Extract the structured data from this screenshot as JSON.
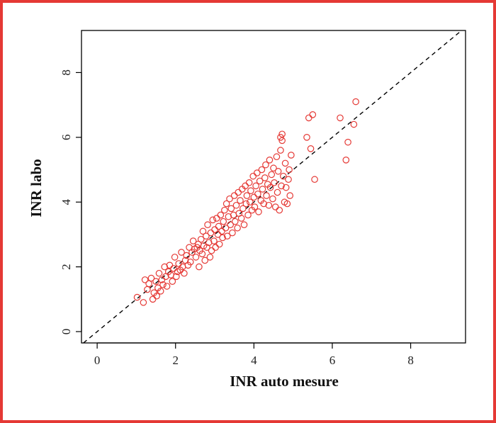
{
  "colors": {
    "border": "#e53935",
    "points": "#e53935",
    "axis": "#000000",
    "reference_line": "#000000"
  },
  "chart_data": {
    "type": "scatter",
    "title": "",
    "xlabel": "INR auto mesure",
    "ylabel": "INR labo",
    "xlim": [
      -0.4,
      9.4
    ],
    "ylim": [
      -0.35,
      9.3
    ],
    "x_ticks": [
      "0",
      "2",
      "4",
      "6",
      "8"
    ],
    "y_ticks": [
      "0",
      "2",
      "4",
      "6",
      "8"
    ],
    "grid": false,
    "reference_line": {
      "style": "dashed",
      "slope": 1,
      "intercept": 0
    },
    "marker": "open-circle",
    "points": [
      [
        1.02,
        1.06
      ],
      [
        1.18,
        0.9
      ],
      [
        1.22,
        1.6
      ],
      [
        1.28,
        1.3
      ],
      [
        1.32,
        1.48
      ],
      [
        1.38,
        1.65
      ],
      [
        1.42,
        1.0
      ],
      [
        1.45,
        1.2
      ],
      [
        1.5,
        1.55
      ],
      [
        1.52,
        1.1
      ],
      [
        1.55,
        1.35
      ],
      [
        1.58,
        1.8
      ],
      [
        1.62,
        1.25
      ],
      [
        1.65,
        1.6
      ],
      [
        1.68,
        1.45
      ],
      [
        1.72,
        2.0
      ],
      [
        1.75,
        1.7
      ],
      [
        1.78,
        1.4
      ],
      [
        1.82,
        1.85
      ],
      [
        1.85,
        2.05
      ],
      [
        1.88,
        1.75
      ],
      [
        1.92,
        1.55
      ],
      [
        1.95,
        1.95
      ],
      [
        1.98,
        2.3
      ],
      [
        2.02,
        1.7
      ],
      [
        2.05,
        1.85
      ],
      [
        2.08,
        2.1
      ],
      [
        2.12,
        1.9
      ],
      [
        2.15,
        2.45
      ],
      [
        2.18,
        2.0
      ],
      [
        2.22,
        1.8
      ],
      [
        2.25,
        2.2
      ],
      [
        2.28,
        2.35
      ],
      [
        2.32,
        2.05
      ],
      [
        2.35,
        2.6
      ],
      [
        2.38,
        2.15
      ],
      [
        2.42,
        2.45
      ],
      [
        2.45,
        2.8
      ],
      [
        2.48,
        2.55
      ],
      [
        2.52,
        2.3
      ],
      [
        2.55,
        2.6
      ],
      [
        2.58,
        2.7
      ],
      [
        2.6,
        2.0
      ],
      [
        2.62,
        2.5
      ],
      [
        2.65,
        2.85
      ],
      [
        2.68,
        2.4
      ],
      [
        2.7,
        3.1
      ],
      [
        2.72,
        2.65
      ],
      [
        2.75,
        2.2
      ],
      [
        2.78,
        2.95
      ],
      [
        2.8,
        2.6
      ],
      [
        2.82,
        3.3
      ],
      [
        2.85,
        2.75
      ],
      [
        2.88,
        2.3
      ],
      [
        2.9,
        3.05
      ],
      [
        2.92,
        2.5
      ],
      [
        2.95,
        3.45
      ],
      [
        2.98,
        2.8
      ],
      [
        3.0,
        3.15
      ],
      [
        3.02,
        2.6
      ],
      [
        3.05,
        3.5
      ],
      [
        3.08,
        3.0
      ],
      [
        3.1,
        3.25
      ],
      [
        3.12,
        2.7
      ],
      [
        3.15,
        3.6
      ],
      [
        3.18,
        3.1
      ],
      [
        3.2,
        2.9
      ],
      [
        3.22,
        3.4
      ],
      [
        3.25,
        3.75
      ],
      [
        3.28,
        3.2
      ],
      [
        3.3,
        3.95
      ],
      [
        3.32,
        2.95
      ],
      [
        3.35,
        3.55
      ],
      [
        3.38,
        4.1
      ],
      [
        3.4,
        3.3
      ],
      [
        3.42,
        3.8
      ],
      [
        3.45,
        3.05
      ],
      [
        3.48,
        3.6
      ],
      [
        3.5,
        4.2
      ],
      [
        3.52,
        3.4
      ],
      [
        3.55,
        3.9
      ],
      [
        3.58,
        3.2
      ],
      [
        3.6,
        4.3
      ],
      [
        3.62,
        3.65
      ],
      [
        3.65,
        4.05
      ],
      [
        3.68,
        3.5
      ],
      [
        3.7,
        4.4
      ],
      [
        3.72,
        3.8
      ],
      [
        3.75,
        3.3
      ],
      [
        3.78,
        4.5
      ],
      [
        3.8,
        3.95
      ],
      [
        3.82,
        4.2
      ],
      [
        3.85,
        3.6
      ],
      [
        3.88,
        4.6
      ],
      [
        3.9,
        4.0
      ],
      [
        3.92,
        4.35
      ],
      [
        3.95,
        3.75
      ],
      [
        3.98,
        4.8
      ],
      [
        4.0,
        4.15
      ],
      [
        4.02,
        3.85
      ],
      [
        4.05,
        4.5
      ],
      [
        4.08,
        4.9
      ],
      [
        4.1,
        4.25
      ],
      [
        4.12,
        3.7
      ],
      [
        4.15,
        4.65
      ],
      [
        4.18,
        4.05
      ],
      [
        4.2,
        5.0
      ],
      [
        4.22,
        4.4
      ],
      [
        4.25,
        3.95
      ],
      [
        4.28,
        4.75
      ],
      [
        4.3,
        5.15
      ],
      [
        4.32,
        4.2
      ],
      [
        4.35,
        4.55
      ],
      [
        4.38,
        3.9
      ],
      [
        4.4,
        5.3
      ],
      [
        4.42,
        4.45
      ],
      [
        4.45,
        4.85
      ],
      [
        4.48,
        4.1
      ],
      [
        4.5,
        5.05
      ],
      [
        4.52,
        4.6
      ],
      [
        4.55,
        3.85
      ],
      [
        4.58,
        5.4
      ],
      [
        4.6,
        4.3
      ],
      [
        4.62,
        4.95
      ],
      [
        4.65,
        3.75
      ],
      [
        4.68,
        5.6
      ],
      [
        4.7,
        4.5
      ],
      [
        4.72,
        5.9
      ],
      [
        4.75,
        4.8
      ],
      [
        4.78,
        4.0
      ],
      [
        4.8,
        5.2
      ],
      [
        4.82,
        4.45
      ],
      [
        4.85,
        3.95
      ],
      [
        4.88,
        4.7
      ],
      [
        4.9,
        5.0
      ],
      [
        4.92,
        4.2
      ],
      [
        4.95,
        5.45
      ],
      [
        5.35,
        6.0
      ],
      [
        5.4,
        6.6
      ],
      [
        5.45,
        5.65
      ],
      [
        5.5,
        6.7
      ],
      [
        5.55,
        4.7
      ],
      [
        6.2,
        6.6
      ],
      [
        6.35,
        5.3
      ],
      [
        6.4,
        5.85
      ],
      [
        6.55,
        6.4
      ],
      [
        6.6,
        7.1
      ],
      [
        4.72,
        6.1
      ],
      [
        4.68,
        6.0
      ]
    ]
  }
}
